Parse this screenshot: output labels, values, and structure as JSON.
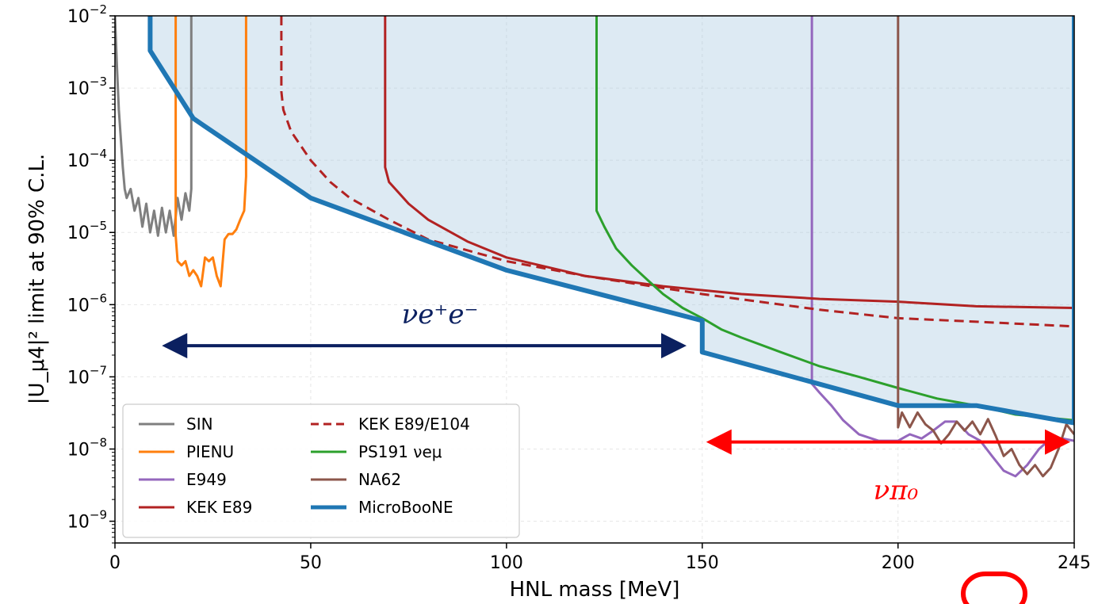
{
  "chart_data": {
    "type": "line",
    "xlabel": "HNL mass [MeV]",
    "ylabel": "|U_μ4|² limit at 90% C.L.",
    "xlim": [
      0,
      245
    ],
    "ylim": [
      5e-10,
      0.01
    ],
    "yscale": "log",
    "grid": true,
    "legend_position": "lower-left",
    "x_ticks": [
      "0",
      "50",
      "100",
      "150",
      "200",
      "245"
    ],
    "y_ticks": [
      {
        "base": "10",
        "exp": "−2",
        "value": 0.01
      },
      {
        "base": "10",
        "exp": "−3",
        "value": 0.001
      },
      {
        "base": "10",
        "exp": "−4",
        "value": 0.0001
      },
      {
        "base": "10",
        "exp": "−5",
        "value": 1e-05
      },
      {
        "base": "10",
        "exp": "−6",
        "value": 1e-06
      },
      {
        "base": "10",
        "exp": "−7",
        "value": 1e-07
      },
      {
        "base": "10",
        "exp": "−8",
        "value": 1e-08
      },
      {
        "base": "10",
        "exp": "−9",
        "value": 1e-09
      }
    ],
    "series": [
      {
        "name": "SIN",
        "color": "#7f7f7f",
        "dash": false,
        "width": 3,
        "x": [
          0,
          0.5,
          1,
          1.5,
          2,
          2.5,
          3,
          4,
          5,
          6,
          7,
          8,
          9,
          10,
          11,
          12,
          13,
          14,
          15,
          16,
          17,
          18,
          19,
          19.5,
          19.5
        ],
        "y": [
          0.01,
          0.002,
          0.0005,
          0.0002,
          8e-05,
          4e-05,
          3e-05,
          4e-05,
          2e-05,
          3e-05,
          1.2e-05,
          2.5e-05,
          1e-05,
          2e-05,
          9e-06,
          2.2e-05,
          1e-05,
          2e-05,
          9e-06,
          3e-05,
          1.5e-05,
          3.5e-05,
          2e-05,
          4e-05,
          0.01
        ]
      },
      {
        "name": "PIENU",
        "color": "#ff7f0e",
        "dash": false,
        "width": 3,
        "x": [
          15.5,
          15.5,
          16,
          17,
          18,
          19,
          20,
          21,
          22,
          23,
          24,
          25,
          26,
          27,
          28,
          29,
          30,
          31,
          32,
          33,
          33.5,
          33.5
        ],
        "y": [
          0.01,
          9e-06,
          4e-06,
          3.5e-06,
          4e-06,
          2.5e-06,
          3e-06,
          2.5e-06,
          1.8e-06,
          4.5e-06,
          4e-06,
          4.5e-06,
          2.5e-06,
          1.8e-06,
          8e-06,
          9.5e-06,
          9.5e-06,
          1.1e-05,
          1.5e-05,
          2e-05,
          6e-05,
          0.01
        ]
      },
      {
        "name": "E949",
        "color": "#9467bd",
        "dash": false,
        "width": 3,
        "x": [
          178,
          178,
          180,
          183,
          186,
          190,
          195,
          200,
          203,
          206,
          209,
          212,
          215,
          218,
          221,
          224,
          227,
          230,
          233,
          236,
          239,
          242,
          245
        ],
        "y": [
          0.01,
          8e-08,
          6e-08,
          4e-08,
          2.5e-08,
          1.6e-08,
          1.3e-08,
          1.3e-08,
          1.6e-08,
          1.4e-08,
          1.8e-08,
          2.4e-08,
          2.4e-08,
          1.6e-08,
          1.3e-08,
          8e-09,
          5e-09,
          4.2e-09,
          6e-09,
          1e-08,
          1.4e-08,
          1.4e-08,
          1.3e-08
        ]
      },
      {
        "name": "KEK E89",
        "color": "#b22222",
        "dash": false,
        "width": 3,
        "x": [
          69,
          69,
          70,
          75,
          80,
          90,
          100,
          120,
          140,
          160,
          180,
          200,
          220,
          245
        ],
        "y": [
          0.01,
          8e-05,
          5e-05,
          2.5e-05,
          1.5e-05,
          7.5e-06,
          4.5e-06,
          2.5e-06,
          1.8e-06,
          1.4e-06,
          1.2e-06,
          1.1e-06,
          9.5e-07,
          9e-07
        ]
      },
      {
        "name": "KEK E89/E104",
        "color": "#b22222",
        "dash": true,
        "width": 3,
        "x": [
          42.5,
          42.5,
          43,
          45,
          50,
          55,
          60,
          70,
          80,
          100,
          120,
          150,
          180,
          200,
          220,
          245
        ],
        "y": [
          0.01,
          0.0009,
          0.0005,
          0.00025,
          0.0001,
          5e-05,
          3e-05,
          1.5e-05,
          8e-06,
          4e-06,
          2.5e-06,
          1.4e-06,
          8.5e-07,
          6.5e-07,
          5.8e-07,
          5e-07
        ]
      },
      {
        "name": "PS191 νeμ",
        "color": "#2ca02c",
        "dash": false,
        "width": 3,
        "x": [
          123,
          123,
          125,
          128,
          132,
          136,
          140,
          145,
          150,
          155,
          160,
          170,
          180,
          190,
          200,
          210,
          220,
          230,
          245
        ],
        "y": [
          0.01,
          2e-05,
          1.2e-05,
          6e-06,
          3.5e-06,
          2.2e-06,
          1.4e-06,
          9e-07,
          6.5e-07,
          4.5e-07,
          3.5e-07,
          2.2e-07,
          1.4e-07,
          1e-07,
          7e-08,
          5e-08,
          4e-08,
          3e-08,
          2.5e-08
        ]
      },
      {
        "name": "NA62",
        "color": "#8c564b",
        "dash": false,
        "width": 3,
        "x": [
          200,
          200,
          201,
          203,
          205,
          207,
          209,
          211,
          213,
          215,
          217,
          219,
          221,
          223,
          225,
          227,
          229,
          231,
          233,
          235,
          237,
          239,
          241,
          243,
          245
        ],
        "y": [
          0.01,
          2e-08,
          3.2e-08,
          2e-08,
          3.2e-08,
          2.2e-08,
          1.8e-08,
          1.2e-08,
          1.6e-08,
          2.4e-08,
          1.8e-08,
          2.4e-08,
          1.6e-08,
          2.6e-08,
          1.5e-08,
          8e-09,
          1e-08,
          6e-09,
          4.5e-09,
          6e-09,
          4.2e-09,
          5.5e-09,
          1e-08,
          2.2e-08,
          1.6e-08
        ]
      },
      {
        "name": "MicroBooNE",
        "color": "#1f77b4",
        "dash": false,
        "width": 6,
        "x": [
          9,
          9,
          20,
          50,
          100,
          150,
          150,
          200,
          220,
          245,
          245
        ],
        "y": [
          0.01,
          0.0033,
          0.00038,
          3e-05,
          3e-06,
          6e-07,
          2.2e-07,
          4e-08,
          4e-08,
          2.3e-08,
          0.01
        ]
      }
    ],
    "annotations": [
      {
        "id": "ee",
        "text": "νe⁺e⁻",
        "color": "#0b2060",
        "x_from": 12,
        "x_to": 147,
        "y": 2.7e-07
      },
      {
        "id": "pi0",
        "text": "νπ₀",
        "color": "#ff0000",
        "x_from": 151,
        "x_to": 245,
        "y": 1.25e-08
      }
    ]
  },
  "legend_items": [
    {
      "label": "SIN",
      "color": "#7f7f7f",
      "dash": false
    },
    {
      "label": "PIENU",
      "color": "#ff7f0e",
      "dash": false
    },
    {
      "label": "E949",
      "color": "#9467bd",
      "dash": false
    },
    {
      "label": "KEK E89",
      "color": "#b22222",
      "dash": false
    },
    {
      "label": "KEK E89/E104",
      "color": "#b22222",
      "dash": true
    },
    {
      "label": "PS191 νeμ",
      "color": "#2ca02c",
      "dash": false
    },
    {
      "label": "NA62",
      "color": "#8c564b",
      "dash": false
    },
    {
      "label": "MicroBooNE",
      "color": "#1f77b4",
      "dash": false
    }
  ]
}
